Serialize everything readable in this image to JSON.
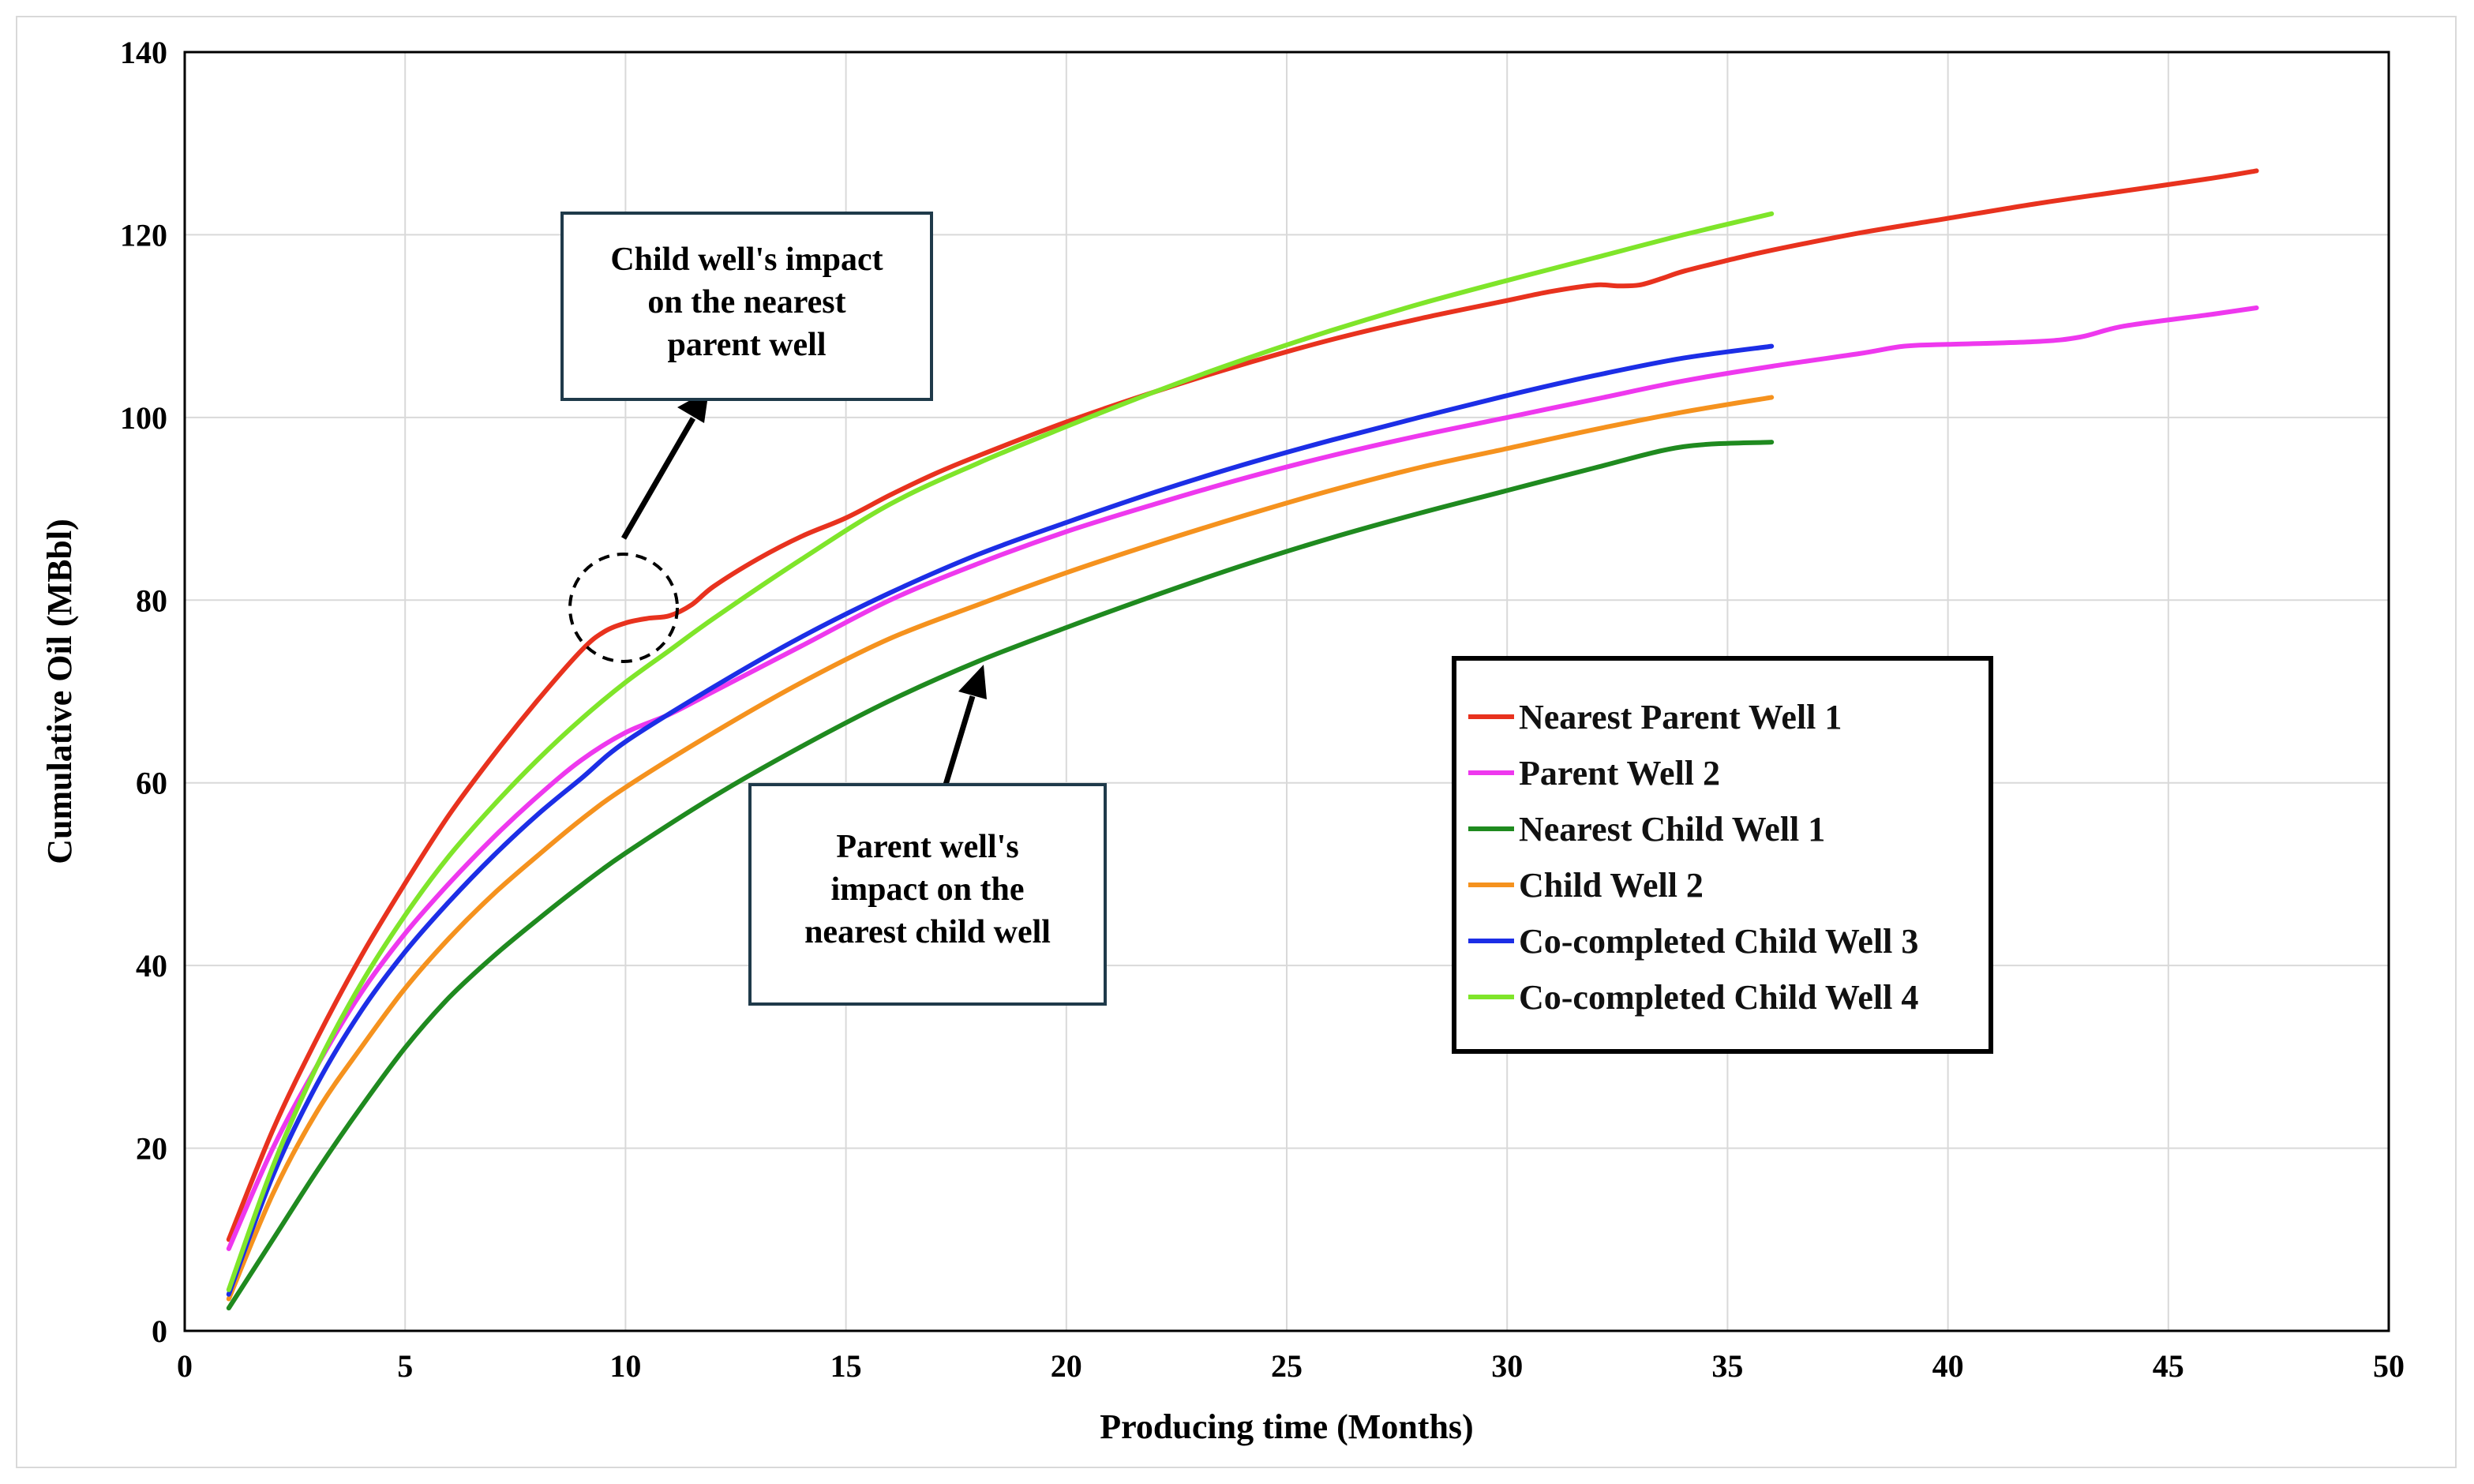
{
  "chart_data": {
    "type": "line",
    "xlabel": "Producing time (Months)",
    "ylabel": "Cumulative Oil (MBbl)",
    "xlim": [
      0,
      50
    ],
    "ylim": [
      0,
      140
    ],
    "xticks": [
      0,
      5,
      10,
      15,
      20,
      25,
      30,
      35,
      40,
      45,
      50
    ],
    "yticks": [
      0,
      20,
      40,
      60,
      80,
      100,
      120,
      140
    ],
    "grid": true,
    "legend_position": "center-right",
    "series": [
      {
        "name": "Nearest Parent Well 1",
        "color": "#e8321e",
        "x": [
          1,
          2,
          3,
          4,
          5,
          6,
          7,
          8,
          9,
          9.5,
          10,
          10.5,
          11,
          11.5,
          12,
          13,
          14,
          15,
          16,
          17,
          18,
          20,
          22,
          24,
          26,
          28,
          30,
          31,
          32,
          32.5,
          33,
          33.5,
          34,
          35,
          36,
          38,
          40,
          42,
          44,
          46,
          47
        ],
        "y": [
          10,
          22,
          32,
          41,
          49,
          56.5,
          63,
          69,
          74.5,
          76.5,
          77.5,
          78,
          78.3,
          79.5,
          81.5,
          84.5,
          87,
          89,
          91.5,
          93.8,
          95.8,
          99.5,
          102.8,
          105.8,
          108.5,
          110.8,
          112.8,
          113.8,
          114.5,
          114.4,
          114.5,
          115.2,
          116,
          117.2,
          118.3,
          120.2,
          121.8,
          123.4,
          124.8,
          126.2,
          127
        ]
      },
      {
        "name": "Parent Well 2",
        "color": "#ee38ee",
        "x": [
          1,
          2,
          3,
          4,
          5,
          6,
          7,
          8,
          9,
          10,
          11,
          12,
          14,
          16,
          18,
          20,
          22,
          24,
          26,
          28,
          30,
          32,
          34,
          36,
          38,
          39,
          40,
          42,
          43,
          44,
          46,
          47
        ],
        "y": [
          9,
          20,
          29,
          37,
          43.5,
          49,
          54,
          58.5,
          62.5,
          65.5,
          67.5,
          70,
          75,
          80,
          84,
          87.5,
          90.5,
          93.3,
          95.8,
          98,
          100,
          102,
          104,
          105.6,
          107,
          107.8,
          108,
          108.3,
          108.8,
          110,
          111.3,
          112
        ]
      },
      {
        "name": "Nearest Child Well 1",
        "color": "#1f8a1f",
        "x": [
          1,
          2,
          3,
          4,
          5,
          6,
          7,
          8,
          9,
          10,
          12,
          14,
          16,
          18,
          20,
          22,
          24,
          26,
          28,
          30,
          32,
          34,
          36
        ],
        "y": [
          2.5,
          10,
          17.5,
          24.5,
          31,
          36.5,
          41,
          45,
          48.8,
          52.3,
          58.5,
          64,
          69,
          73.3,
          77,
          80.5,
          83.8,
          86.8,
          89.5,
          92,
          94.5,
          96.8,
          97.3
        ]
      },
      {
        "name": "Child Well 2",
        "color": "#f5921e",
        "x": [
          1,
          2,
          3,
          4,
          5,
          6,
          7,
          8,
          9,
          10,
          12,
          14,
          16,
          18,
          20,
          22,
          24,
          26,
          28,
          30,
          32,
          34,
          36
        ],
        "y": [
          3.5,
          15,
          24,
          31,
          37.5,
          43,
          47.8,
          52,
          56,
          59.5,
          65.5,
          71,
          75.8,
          79.5,
          83,
          86.2,
          89.2,
          92,
          94.5,
          96.6,
          98.7,
          100.6,
          102.2
        ]
      },
      {
        "name": "Co-completed Child Well 3",
        "color": "#1c2ee6",
        "x": [
          1,
          2,
          3,
          4,
          5,
          6,
          7,
          8,
          9,
          10,
          12,
          14,
          16,
          18,
          20,
          22,
          24,
          26,
          28,
          30,
          32,
          34,
          36
        ],
        "y": [
          4,
          17,
          27,
          35,
          41.5,
          47,
          52,
          56.5,
          60.5,
          64.5,
          70.5,
          76,
          80.8,
          85,
          88.5,
          91.8,
          94.8,
          97.5,
          100,
          102.4,
          104.6,
          106.5,
          107.8
        ]
      },
      {
        "name": "Co-completed Child Well 4",
        "color": "#7fe52a",
        "x": [
          1,
          2,
          3,
          4,
          5,
          6,
          7,
          8,
          9,
          10,
          11,
          12,
          14,
          16,
          18,
          20,
          22,
          24,
          26,
          28,
          30,
          32,
          34,
          36
        ],
        "y": [
          4.5,
          18,
          29,
          38,
          45.5,
          52,
          57.5,
          62.5,
          67,
          71,
          74.5,
          78,
          84.5,
          90.5,
          95,
          99,
          102.8,
          106.3,
          109.5,
          112.4,
          115,
          117.5,
          120,
          122.3
        ]
      }
    ],
    "annotations": [
      {
        "lines": [
          "Child well's impact",
          "on the nearest",
          "parent well"
        ]
      },
      {
        "lines": [
          "Parent well's",
          "impact on the",
          "nearest child well"
        ]
      }
    ]
  }
}
